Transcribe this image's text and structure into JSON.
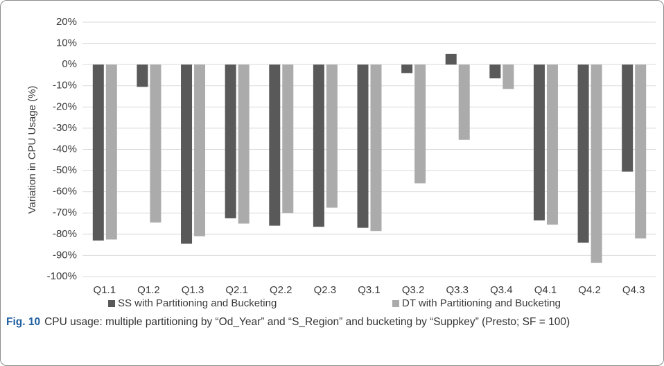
{
  "chart_data": {
    "type": "bar",
    "y_label": "Variation in CPU Usage (%)",
    "categories": [
      "Q1.1",
      "Q1.2",
      "Q1.3",
      "Q2.1",
      "Q2.2",
      "Q2.3",
      "Q3.1",
      "Q3.2",
      "Q3.3",
      "Q3.4",
      "Q4.1",
      "Q4.2",
      "Q4.3"
    ],
    "series": [
      {
        "name": "SS with Partitioning and Bucketing",
        "color": "#595959",
        "values": [
          -83,
          -10.5,
          -84.5,
          -72.5,
          -76,
          -76.5,
          -77,
          -4,
          5,
          -6.5,
          -73.5,
          -84,
          -50.5
        ]
      },
      {
        "name": "DT with Partitioning and Bucketing",
        "color": "#ababab",
        "values": [
          -82.5,
          -74.5,
          -81,
          -75,
          -70,
          -67.5,
          -78.5,
          -56,
          -35.5,
          -11.5,
          -75.5,
          -93.5,
          -82
        ]
      }
    ],
    "ylim": [
      -100,
      20
    ],
    "yticks": [
      {
        "value": -100,
        "label": "-100%"
      },
      {
        "value": -90,
        "label": "-90%"
      },
      {
        "value": -80,
        "label": "-80%"
      },
      {
        "value": -70,
        "label": "-70%"
      },
      {
        "value": -60,
        "label": "-60%"
      },
      {
        "value": -50,
        "label": "-50%"
      },
      {
        "value": -40,
        "label": "-40%"
      },
      {
        "value": -30,
        "label": "-30%"
      },
      {
        "value": -20,
        "label": "-20%"
      },
      {
        "value": -10,
        "label": "-10%"
      },
      {
        "value": 0,
        "label": "0%"
      },
      {
        "value": 10,
        "label": "10%"
      },
      {
        "value": 20,
        "label": "20%"
      }
    ],
    "grid": true,
    "legend": "bottom"
  },
  "caption_label": "Fig. 10",
  "caption": "CPU usage: multiple partitioning by “Od_Year” and “S_Region” and bucketing by “Suppkey” (Presto; SF = 100)"
}
